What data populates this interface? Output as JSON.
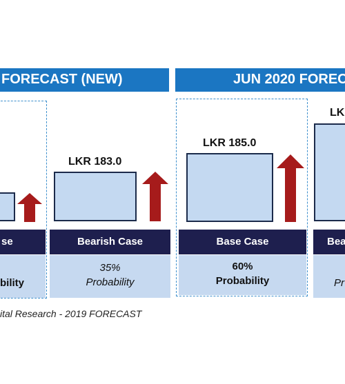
{
  "headers": {
    "left": "FORECAST (NEW)",
    "right": "JUN 2020 FORECA"
  },
  "scenarios": [
    {
      "case_label": "se",
      "probability_pct": "",
      "probability_word": "bility",
      "price": ""
    },
    {
      "case_label": "Bearish Case",
      "probability_pct": "35%",
      "probability_word": "Probability",
      "price": "LKR 183.0"
    },
    {
      "case_label": "Base Case",
      "probability_pct": "60%",
      "probability_word": "Probability",
      "price": "LKR 185.0"
    },
    {
      "case_label": "Bea",
      "probability_pct": "",
      "probability_word": "Pr",
      "price": "LK"
    }
  ],
  "footer": "ital Research - 2019 FORECAST",
  "colors": {
    "header_blue": "#1b76c2",
    "case_bar_navy": "#1e1f4e",
    "box_fill": "#c4d9f1",
    "arrow_red": "#a61b1b"
  },
  "icons": [
    "up-arrow-icon"
  ]
}
